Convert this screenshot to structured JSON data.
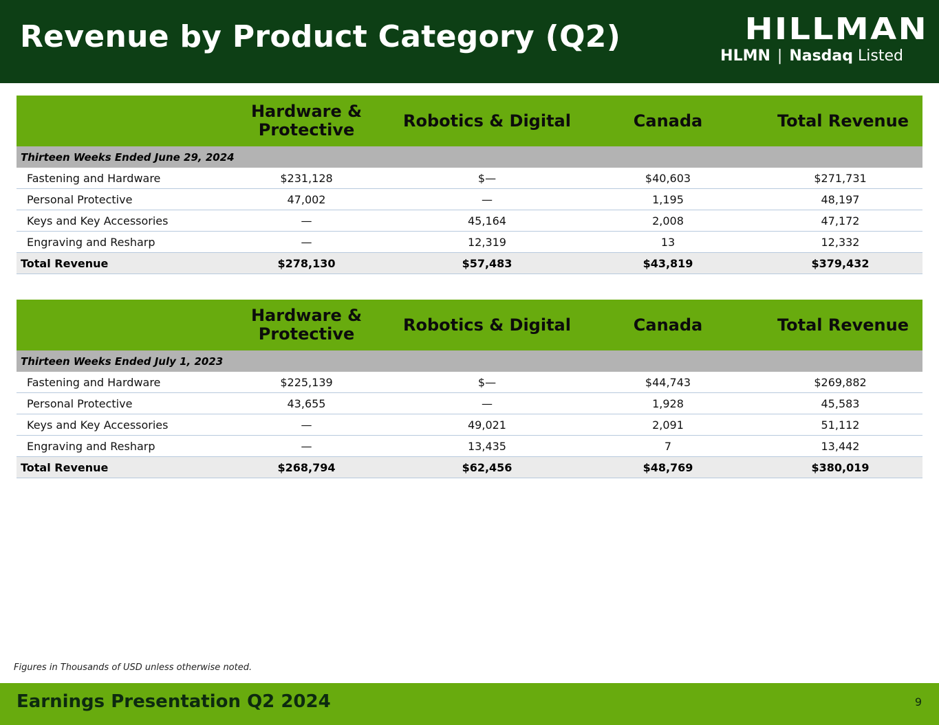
{
  "header": {
    "title": "Revenue by Product Category (Q2)",
    "logo": {
      "wordmark": "HILLMAN",
      "ticker": "HLMN",
      "separator": "|",
      "exchange": "Nasdaq",
      "listed": "Listed"
    }
  },
  "tables": [
    {
      "columns": [
        "",
        "Hardware & Protective",
        "Robotics & Digital",
        "Canada",
        "Total Revenue"
      ],
      "period": "Thirteen Weeks Ended June 29, 2024",
      "rows": [
        {
          "label": "Fastening and Hardware",
          "values": [
            "$231,128",
            "$—",
            "$40,603",
            "$271,731"
          ]
        },
        {
          "label": "Personal Protective",
          "values": [
            "47,002",
            "—",
            "1,195",
            "48,197"
          ]
        },
        {
          "label": "Keys and Key Accessories",
          "values": [
            "—",
            "45,164",
            "2,008",
            "47,172"
          ]
        },
        {
          "label": "Engraving and Resharp",
          "values": [
            "—",
            "12,319",
            "13",
            "12,332"
          ]
        }
      ],
      "total": {
        "label": "Total Revenue",
        "values": [
          "$278,130",
          "$57,483",
          "$43,819",
          "$379,432"
        ]
      }
    },
    {
      "columns": [
        "",
        "Hardware & Protective",
        "Robotics & Digital",
        "Canada",
        "Total Revenue"
      ],
      "period": "Thirteen Weeks Ended July 1, 2023",
      "rows": [
        {
          "label": "Fastening and Hardware",
          "values": [
            "$225,139",
            "$—",
            "$44,743",
            "$269,882"
          ]
        },
        {
          "label": "Personal Protective",
          "values": [
            "43,655",
            "—",
            "1,928",
            "45,583"
          ]
        },
        {
          "label": "Keys and Key Accessories",
          "values": [
            "—",
            "49,021",
            "2,091",
            "51,112"
          ]
        },
        {
          "label": "Engraving and Resharp",
          "values": [
            "—",
            "13,435",
            "7",
            "13,442"
          ]
        }
      ],
      "total": {
        "label": "Total Revenue",
        "values": [
          "$268,794",
          "$62,456",
          "$48,769",
          "$380,019"
        ]
      }
    }
  ],
  "footnote": "Figures in Thousands of USD unless otherwise noted.",
  "footer": {
    "title": "Earnings Presentation Q2 2024",
    "page_number": "9"
  },
  "colors": {
    "header_bg": "#0d3f15",
    "accent_green": "#68ab0e",
    "period_row_bg": "#b3b3b3",
    "total_row_bg": "#ebebeb",
    "row_divider": "#b7c9dd"
  }
}
